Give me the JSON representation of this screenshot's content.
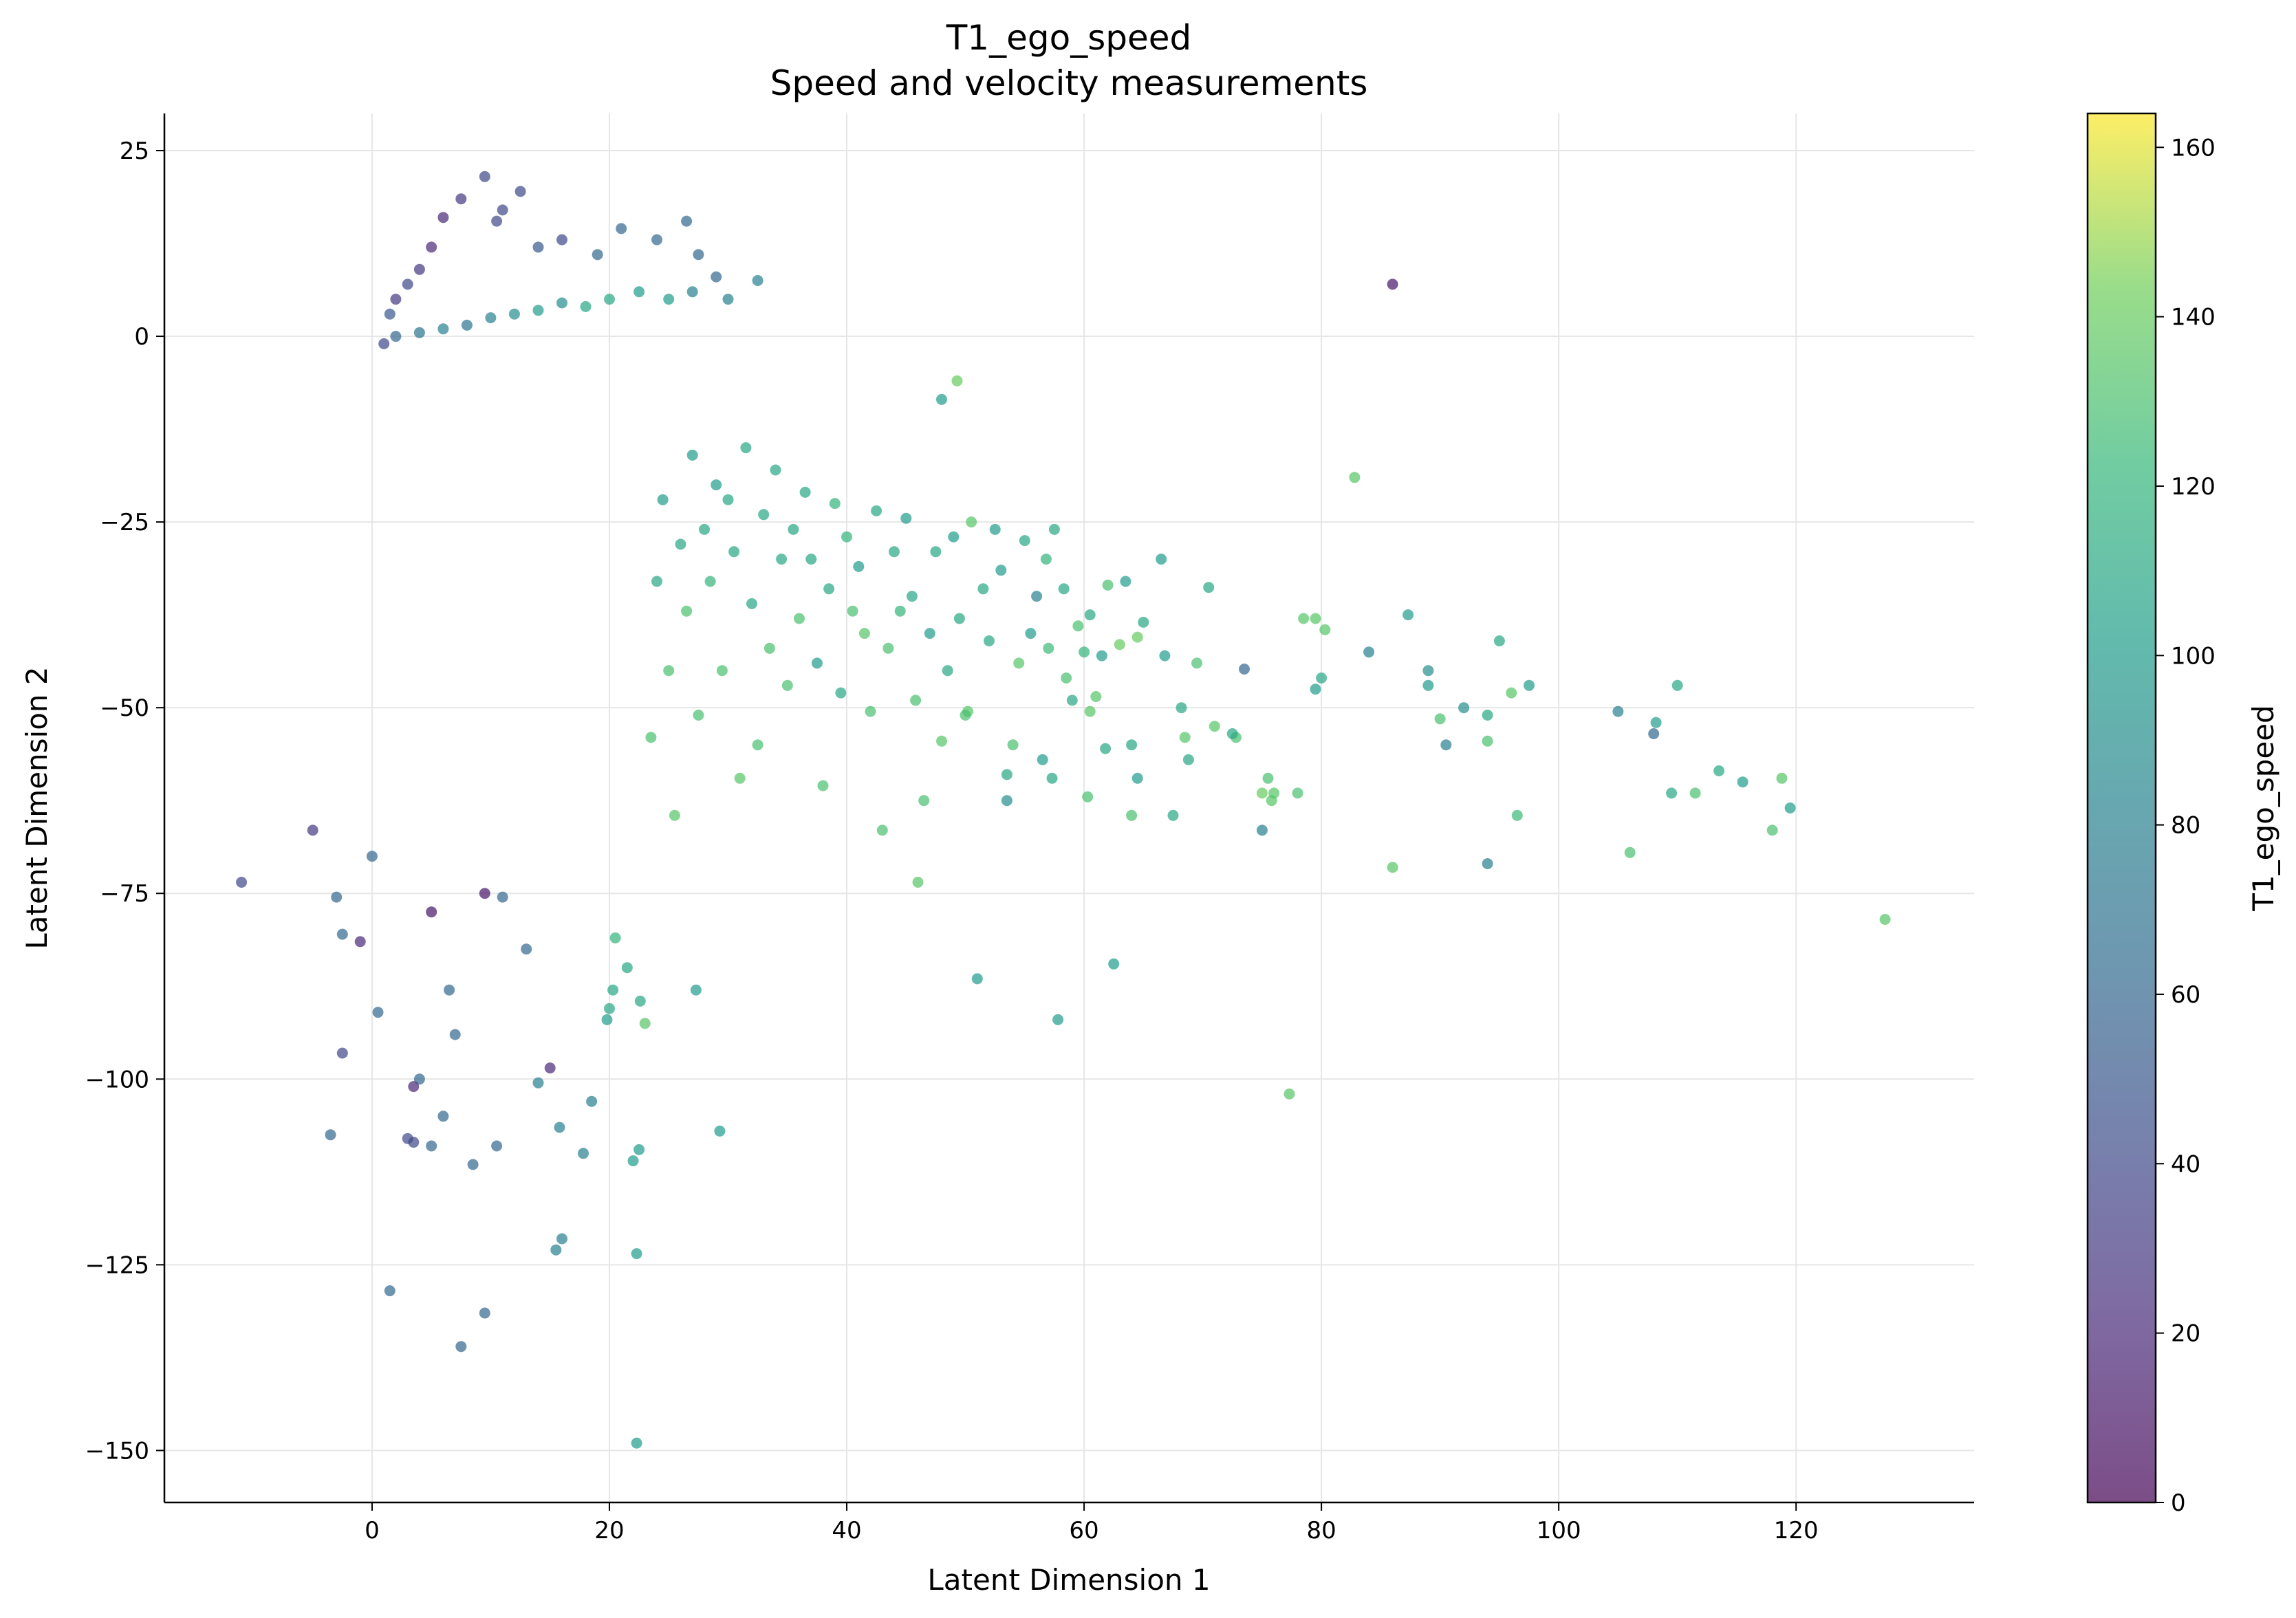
{
  "chart_data": {
    "type": "scatter",
    "title": "T1_ego_speed",
    "subtitle": "Speed and velocity measurements",
    "xlabel": "Latent Dimension 1",
    "ylabel": "Latent Dimension 2",
    "xlim": [
      -17.5,
      135
    ],
    "ylim": [
      -157,
      30
    ],
    "xticks": [
      0,
      20,
      40,
      60,
      80,
      100,
      120
    ],
    "yticks": [
      25,
      0,
      -25,
      -50,
      -75,
      -100,
      -125,
      -150
    ],
    "xtick_labels": [
      "0",
      "20",
      "40",
      "60",
      "80",
      "100",
      "120"
    ],
    "ytick_labels": [
      "25",
      "0",
      "−25",
      "−50",
      "−75",
      "−100",
      "−125",
      "−150"
    ],
    "grid": true,
    "colormap": "viridis",
    "alpha": 0.7,
    "colorbar": {
      "label": "T1_ego_speed",
      "range": [
        0,
        164
      ],
      "ticks": [
        0,
        20,
        40,
        60,
        80,
        100,
        120,
        140,
        160
      ],
      "tick_labels": [
        "0",
        "20",
        "40",
        "60",
        "80",
        "100",
        "120",
        "140",
        "160"
      ]
    },
    "points": [
      [
        86,
        7,
        10
      ],
      [
        82.8,
        -19,
        135
      ],
      [
        127.5,
        -78.5,
        135
      ],
      [
        119.5,
        -63.5,
        100
      ],
      [
        118.8,
        -59.5,
        135
      ],
      [
        118,
        -66.5,
        130
      ],
      [
        115.5,
        -60,
        100
      ],
      [
        113.5,
        -58.5,
        110
      ],
      [
        111.5,
        -61.5,
        130
      ],
      [
        109.5,
        -61.5,
        110
      ],
      [
        110,
        -47,
        110
      ],
      [
        106,
        -69.5,
        130
      ],
      [
        105,
        -50.5,
        80
      ],
      [
        108,
        -53.5,
        60
      ],
      [
        108.2,
        -52,
        100
      ],
      [
        97.5,
        -47,
        100
      ],
      [
        96.5,
        -64.5,
        125
      ],
      [
        96,
        -48,
        135
      ],
      [
        95,
        -41,
        110
      ],
      [
        94,
        -51,
        110
      ],
      [
        94,
        -54.5,
        130
      ],
      [
        94,
        -71,
        80
      ],
      [
        92,
        -50,
        90
      ],
      [
        90.5,
        -55,
        80
      ],
      [
        90,
        -51.5,
        130
      ],
      [
        89,
        -45,
        90
      ],
      [
        89,
        -47,
        100
      ],
      [
        87.3,
        -37.5,
        100
      ],
      [
        86,
        -71.5,
        135
      ],
      [
        84,
        -42.5,
        80
      ],
      [
        80.3,
        -39.5,
        135
      ],
      [
        80,
        -46,
        110
      ],
      [
        79.5,
        -38,
        135
      ],
      [
        79.5,
        -47.5,
        100
      ],
      [
        78.5,
        -38,
        135
      ],
      [
        78,
        -61.5,
        130
      ],
      [
        77.3,
        -102,
        135
      ],
      [
        76,
        -61.5,
        135
      ],
      [
        75.8,
        -62.5,
        135
      ],
      [
        75.5,
        -59.5,
        130
      ],
      [
        75,
        -66.5,
        80
      ],
      [
        75,
        -61.5,
        140
      ],
      [
        73.5,
        -44.8,
        60
      ],
      [
        72.8,
        -54,
        130
      ],
      [
        72.5,
        -53.5,
        110
      ],
      [
        71,
        -52.5,
        135
      ],
      [
        70.5,
        -33.8,
        110
      ],
      [
        69.5,
        -44,
        130
      ],
      [
        68.8,
        -57,
        110
      ],
      [
        68.5,
        -54,
        135
      ],
      [
        68.2,
        -50,
        110
      ],
      [
        67.5,
        -64.5,
        110
      ],
      [
        66.8,
        -43,
        100
      ],
      [
        66.5,
        -30,
        100
      ],
      [
        65,
        -38.5,
        110
      ],
      [
        64.5,
        -40.5,
        140
      ],
      [
        64.5,
        -59.5,
        100
      ],
      [
        64,
        -55,
        110
      ],
      [
        64,
        -64.5,
        130
      ],
      [
        63.5,
        -33,
        100
      ],
      [
        63,
        -41.5,
        140
      ],
      [
        62.5,
        -84.5,
        100
      ],
      [
        62,
        -33.5,
        130
      ],
      [
        61.8,
        -55.5,
        110
      ],
      [
        61.5,
        -43,
        100
      ],
      [
        61,
        -48.5,
        135
      ],
      [
        60.5,
        -37.5,
        110
      ],
      [
        60.5,
        -50.5,
        135
      ],
      [
        60.3,
        -62,
        130
      ],
      [
        60,
        -42.5,
        120
      ],
      [
        59.5,
        -39,
        130
      ],
      [
        59,
        -49,
        110
      ],
      [
        58.5,
        -46,
        130
      ],
      [
        58.3,
        -34,
        110
      ],
      [
        57.8,
        -92,
        100
      ],
      [
        57.5,
        -26,
        110
      ],
      [
        57.3,
        -59.5,
        110
      ],
      [
        57,
        -42,
        125
      ],
      [
        56.8,
        -30,
        120
      ],
      [
        56.5,
        -57,
        100
      ],
      [
        56,
        -35,
        80
      ],
      [
        55.5,
        -40,
        100
      ],
      [
        55,
        -27.5,
        110
      ],
      [
        54.5,
        -44,
        135
      ],
      [
        54,
        -55,
        130
      ],
      [
        53.5,
        -62.5,
        90
      ],
      [
        53.5,
        -59,
        110
      ],
      [
        53,
        -31.5,
        100
      ],
      [
        52.5,
        -26,
        100
      ],
      [
        52,
        -41,
        110
      ],
      [
        51.5,
        -34,
        110
      ],
      [
        51,
        -86.5,
        100
      ],
      [
        50.5,
        -25,
        135
      ],
      [
        50.2,
        -50.5,
        135
      ],
      [
        50,
        -51,
        130
      ],
      [
        49.5,
        -38,
        110
      ],
      [
        49.3,
        -6,
        140
      ],
      [
        49,
        -27,
        100
      ],
      [
        48.5,
        -45,
        110
      ],
      [
        48,
        -54.5,
        135
      ],
      [
        48,
        -8.5,
        100
      ],
      [
        47.5,
        -29,
        110
      ],
      [
        47,
        -40,
        100
      ],
      [
        46.5,
        -62.5,
        130
      ],
      [
        46,
        -73.5,
        135
      ],
      [
        45.8,
        -49,
        130
      ],
      [
        45.5,
        -35,
        110
      ],
      [
        45,
        -24.5,
        100
      ],
      [
        44.5,
        -37,
        120
      ],
      [
        44,
        -29,
        110
      ],
      [
        43.5,
        -42,
        130
      ],
      [
        43,
        -66.5,
        130
      ],
      [
        42.5,
        -23.5,
        110
      ],
      [
        42,
        -50.5,
        130
      ],
      [
        41.5,
        -40,
        135
      ],
      [
        41,
        -31,
        100
      ],
      [
        40.5,
        -37,
        130
      ],
      [
        40,
        -27,
        120
      ],
      [
        39.5,
        -48,
        110
      ],
      [
        39,
        -22.5,
        120
      ],
      [
        38.5,
        -34,
        110
      ],
      [
        38,
        -60.5,
        130
      ],
      [
        37.5,
        -44,
        100
      ],
      [
        37,
        -30,
        110
      ],
      [
        36.5,
        -21,
        110
      ],
      [
        36,
        -38,
        130
      ],
      [
        35.5,
        -26,
        110
      ],
      [
        35,
        -47,
        130
      ],
      [
        34.5,
        -30,
        110
      ],
      [
        34,
        -18,
        110
      ],
      [
        33.5,
        -42,
        130
      ],
      [
        33,
        -24,
        110
      ],
      [
        32.5,
        -55,
        130
      ],
      [
        32,
        -36,
        110
      ],
      [
        31.5,
        -15,
        110
      ],
      [
        31,
        -59.5,
        135
      ],
      [
        30.5,
        -29,
        110
      ],
      [
        30,
        -22,
        110
      ],
      [
        29.5,
        -45,
        130
      ],
      [
        29.3,
        -107,
        100
      ],
      [
        29,
        -20,
        100
      ],
      [
        28.5,
        -33,
        120
      ],
      [
        28,
        -26,
        110
      ],
      [
        27.5,
        -51,
        130
      ],
      [
        27.3,
        -88,
        100
      ],
      [
        27,
        -16,
        100
      ],
      [
        26.5,
        -37,
        130
      ],
      [
        26,
        -28,
        110
      ],
      [
        25.5,
        -64.5,
        135
      ],
      [
        25,
        -45,
        130
      ],
      [
        24.5,
        -22,
        100
      ],
      [
        24,
        -33,
        110
      ],
      [
        23.5,
        -54,
        130
      ],
      [
        23,
        -92.5,
        135
      ],
      [
        22.6,
        -89.5,
        110
      ],
      [
        22.5,
        -109.5,
        100
      ],
      [
        22.3,
        -123.5,
        100
      ],
      [
        22.3,
        -149,
        100
      ],
      [
        22,
        -111,
        100
      ],
      [
        20.3,
        -88,
        110
      ],
      [
        20,
        -90.5,
        110
      ],
      [
        21.5,
        -85,
        110
      ],
      [
        20.5,
        -81,
        120
      ],
      [
        19.8,
        -92,
        100
      ],
      [
        18.5,
        -103,
        80
      ],
      [
        17.8,
        -110,
        80
      ],
      [
        16,
        -121.5,
        80
      ],
      [
        15.5,
        -123,
        80
      ],
      [
        15.8,
        -106.5,
        80
      ],
      [
        15,
        -98.5,
        20
      ],
      [
        14,
        -100.5,
        80
      ],
      [
        13,
        -82.5,
        60
      ],
      [
        10.5,
        -109,
        60
      ],
      [
        9.5,
        -131.5,
        60
      ],
      [
        7.5,
        -136,
        60
      ],
      [
        8.5,
        -111.5,
        60
      ],
      [
        7,
        -94,
        60
      ],
      [
        6,
        -105,
        60
      ],
      [
        5,
        -109,
        60
      ],
      [
        4,
        -100,
        60
      ],
      [
        3.5,
        -101,
        20
      ],
      [
        3.5,
        -108.5,
        40
      ],
      [
        3,
        -108,
        40
      ],
      [
        1.5,
        -128.5,
        60
      ],
      [
        0.5,
        -91,
        60
      ],
      [
        -3.5,
        -107.5,
        60
      ],
      [
        -2.5,
        -96.5,
        40
      ],
      [
        -11,
        -73.5,
        40
      ],
      [
        -5,
        -66.5,
        30
      ],
      [
        -3,
        -75.5,
        60
      ],
      [
        -2.5,
        -80.5,
        60
      ],
      [
        -1,
        -81.5,
        20
      ],
      [
        0,
        -70,
        60
      ],
      [
        5,
        -77.5,
        10
      ],
      [
        6.5,
        -88,
        60
      ],
      [
        9.5,
        -75,
        10
      ],
      [
        11,
        -75.5,
        60
      ],
      [
        12.5,
        19.5,
        40
      ],
      [
        9.5,
        21.5,
        40
      ],
      [
        7.5,
        18.5,
        30
      ],
      [
        6,
        16,
        20
      ],
      [
        5,
        12,
        20
      ],
      [
        4,
        9,
        30
      ],
      [
        3,
        7,
        40
      ],
      [
        2,
        5,
        30
      ],
      [
        1.5,
        3,
        50
      ],
      [
        11,
        17,
        40
      ],
      [
        10.5,
        15.5,
        40
      ],
      [
        14,
        12,
        50
      ],
      [
        16,
        13,
        40
      ],
      [
        19,
        11,
        60
      ],
      [
        21,
        14.5,
        60
      ],
      [
        24,
        13,
        60
      ],
      [
        26.5,
        15.5,
        60
      ],
      [
        27.5,
        11,
        60
      ],
      [
        29,
        8,
        60
      ],
      [
        32.5,
        7.5,
        80
      ],
      [
        30,
        5,
        80
      ],
      [
        27,
        6,
        80
      ],
      [
        25,
        5,
        100
      ],
      [
        22.5,
        6,
        100
      ],
      [
        20,
        5,
        110
      ],
      [
        18,
        4,
        110
      ],
      [
        16,
        4.5,
        90
      ],
      [
        14,
        3.5,
        100
      ],
      [
        12,
        3,
        90
      ],
      [
        10,
        2.5,
        80
      ],
      [
        8,
        1.5,
        70
      ],
      [
        6,
        1,
        80
      ],
      [
        4,
        0.5,
        70
      ],
      [
        2,
        0,
        60
      ],
      [
        1,
        -1,
        40
      ]
    ],
    "cluster": {
      "description_only_for_generation": false
    }
  }
}
